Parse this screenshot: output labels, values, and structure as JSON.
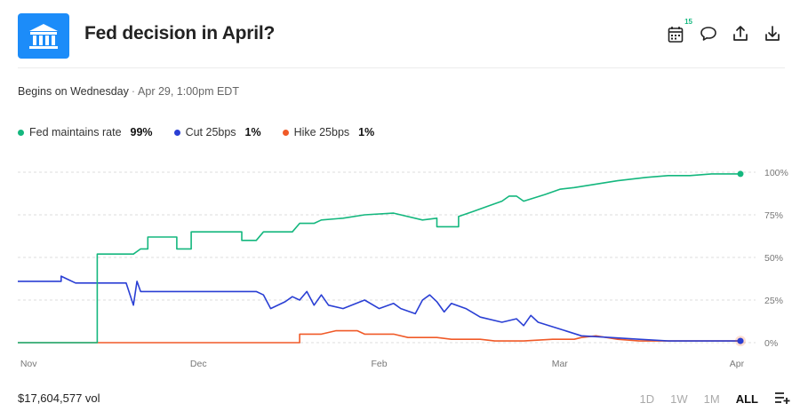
{
  "header": {
    "title": "Fed decision in April?",
    "calendar_badge": "15",
    "brand_color": "#1c8cf9"
  },
  "subheader": {
    "begins_label": "Begins on Wednesday",
    "date_label": "Apr 29, 1:00pm EDT"
  },
  "legend": [
    {
      "name": "Fed maintains rate",
      "pct": "99%",
      "color": "#14b77e"
    },
    {
      "name": "Cut 25bps",
      "pct": "1%",
      "color": "#2a3fd4"
    },
    {
      "name": "Hike 25bps",
      "pct": "1%",
      "color": "#f05a28"
    }
  ],
  "footer": {
    "volume": "$17,604,577 vol",
    "ranges": [
      "1D",
      "1W",
      "1M",
      "ALL"
    ],
    "active_range": "ALL"
  },
  "icons": {
    "logo": "bank-building-icon",
    "toolbar": [
      "calendar-icon",
      "comment-icon",
      "share-icon",
      "download-icon"
    ],
    "range_menu": "list-add-icon"
  },
  "chart_data": {
    "type": "line",
    "x_ticks": [
      "Nov",
      "Dec",
      "Feb",
      "Mar",
      "Apr"
    ],
    "y_ticks": [
      "100%",
      "75%",
      "50%",
      "25%",
      "0%"
    ],
    "ylim": [
      0,
      100
    ],
    "grid": "horizontal dashed",
    "series": [
      {
        "name": "Fed maintains rate",
        "color": "#14b77e",
        "points": [
          [
            0,
            0
          ],
          [
            0.11,
            0
          ],
          [
            0.11,
            52
          ],
          [
            0.16,
            52
          ],
          [
            0.16,
            52
          ],
          [
            0.17,
            55
          ],
          [
            0.18,
            55
          ],
          [
            0.18,
            62
          ],
          [
            0.22,
            62
          ],
          [
            0.22,
            55
          ],
          [
            0.24,
            55
          ],
          [
            0.24,
            65
          ],
          [
            0.29,
            65
          ],
          [
            0.31,
            65
          ],
          [
            0.31,
            60
          ],
          [
            0.33,
            60
          ],
          [
            0.34,
            65
          ],
          [
            0.38,
            65
          ],
          [
            0.39,
            70
          ],
          [
            0.41,
            70
          ],
          [
            0.42,
            72
          ],
          [
            0.45,
            73
          ],
          [
            0.48,
            75
          ],
          [
            0.52,
            76
          ],
          [
            0.56,
            72
          ],
          [
            0.58,
            73
          ],
          [
            0.58,
            68
          ],
          [
            0.61,
            68
          ],
          [
            0.61,
            74
          ],
          [
            0.63,
            77
          ],
          [
            0.65,
            80
          ],
          [
            0.67,
            83
          ],
          [
            0.68,
            86
          ],
          [
            0.69,
            86
          ],
          [
            0.7,
            83
          ],
          [
            0.73,
            87
          ],
          [
            0.75,
            90
          ],
          [
            0.77,
            91
          ],
          [
            0.8,
            93
          ],
          [
            0.83,
            95
          ],
          [
            0.87,
            97
          ],
          [
            0.9,
            98
          ],
          [
            0.93,
            98
          ],
          [
            0.96,
            99
          ],
          [
            1.0,
            99
          ]
        ]
      },
      {
        "name": "Cut 25bps",
        "color": "#2a3fd4",
        "points": [
          [
            0,
            36
          ],
          [
            0.06,
            36
          ],
          [
            0.06,
            39
          ],
          [
            0.07,
            37
          ],
          [
            0.08,
            35
          ],
          [
            0.15,
            35
          ],
          [
            0.16,
            22
          ],
          [
            0.165,
            36
          ],
          [
            0.17,
            30
          ],
          [
            0.33,
            30
          ],
          [
            0.34,
            28
          ],
          [
            0.35,
            20
          ],
          [
            0.37,
            24
          ],
          [
            0.38,
            27
          ],
          [
            0.39,
            25
          ],
          [
            0.4,
            30
          ],
          [
            0.41,
            22
          ],
          [
            0.42,
            28
          ],
          [
            0.43,
            22
          ],
          [
            0.45,
            20
          ],
          [
            0.48,
            25
          ],
          [
            0.5,
            20
          ],
          [
            0.52,
            23
          ],
          [
            0.53,
            20
          ],
          [
            0.55,
            17
          ],
          [
            0.56,
            25
          ],
          [
            0.57,
            28
          ],
          [
            0.58,
            24
          ],
          [
            0.59,
            18
          ],
          [
            0.6,
            23
          ],
          [
            0.62,
            20
          ],
          [
            0.64,
            15
          ],
          [
            0.67,
            12
          ],
          [
            0.69,
            14
          ],
          [
            0.7,
            10
          ],
          [
            0.71,
            16
          ],
          [
            0.72,
            12
          ],
          [
            0.75,
            8
          ],
          [
            0.78,
            4
          ],
          [
            0.82,
            3
          ],
          [
            0.86,
            2
          ],
          [
            0.9,
            1
          ],
          [
            0.95,
            1
          ],
          [
            1.0,
            1
          ]
        ]
      },
      {
        "name": "Hike 25bps",
        "color": "#f05a28",
        "points": [
          [
            0,
            0
          ],
          [
            0.39,
            0
          ],
          [
            0.39,
            5
          ],
          [
            0.42,
            5
          ],
          [
            0.44,
            7
          ],
          [
            0.47,
            7
          ],
          [
            0.48,
            5
          ],
          [
            0.52,
            5
          ],
          [
            0.54,
            3
          ],
          [
            0.58,
            3
          ],
          [
            0.6,
            2
          ],
          [
            0.64,
            2
          ],
          [
            0.66,
            1
          ],
          [
            0.7,
            1
          ],
          [
            0.74,
            2
          ],
          [
            0.77,
            2
          ],
          [
            0.78,
            3
          ],
          [
            0.8,
            4
          ],
          [
            0.83,
            2
          ],
          [
            0.86,
            1
          ],
          [
            0.9,
            1
          ],
          [
            0.95,
            1
          ],
          [
            1.0,
            1
          ]
        ]
      }
    ]
  }
}
